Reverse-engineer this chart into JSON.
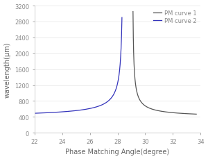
{
  "title": "",
  "xlabel": "Phase Matching Angle(degree)",
  "ylabel": "wavelength(μm)",
  "xlim": [
    22,
    34
  ],
  "ylim": [
    0,
    3200
  ],
  "xticks": [
    22,
    24,
    26,
    28,
    30,
    32,
    34
  ],
  "yticks": [
    0,
    400,
    800,
    1200,
    1600,
    2000,
    2400,
    2800,
    3200
  ],
  "curve1_color": "#555555",
  "curve2_color": "#3333bb",
  "legend_labels": [
    "PM curve 1",
    "PM curve 2"
  ],
  "background_color": "#ffffff",
  "curve1_asymptote": 29.07,
  "curve1_range": [
    29.12,
    33.7
  ],
  "curve1_peak_wl": 3050,
  "curve1_base_wl": 380,
  "curve1_n": 0.75,
  "curve2_asymptote": 28.42,
  "curve2_range": [
    22.0,
    28.32
  ],
  "curve2_peak_wl": 2900,
  "curve2_base_wl": 380,
  "curve2_n": 0.75,
  "linewidth": 0.9,
  "tick_labelsize": 6,
  "label_fontsize": 7,
  "legend_fontsize": 6,
  "spine_color": "#bbbbbb",
  "tick_color": "#888888",
  "label_color": "#666666"
}
